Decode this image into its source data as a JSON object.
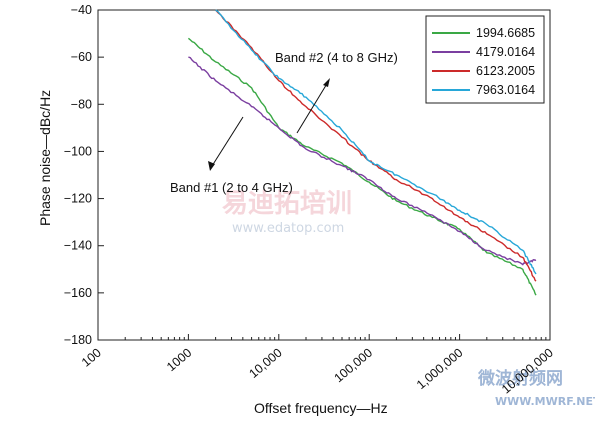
{
  "chart_data": {
    "type": "line",
    "xlabel": "Offset frequency—Hz",
    "ylabel": "Phase noise—dBc/Hz",
    "x_scale": "log",
    "xlim": [
      100,
      10000000
    ],
    "ylim": [
      -180,
      -40
    ],
    "x_ticks": [
      100,
      1000,
      10000,
      100000,
      1000000,
      10000000
    ],
    "x_tick_labels": [
      "100",
      "1000",
      "10,000",
      "100,000",
      "1,000,000",
      "10,000,000"
    ],
    "y_ticks": [
      -40,
      -60,
      -80,
      -100,
      -120,
      -140,
      -160,
      -180
    ],
    "y_tick_labels": [
      "−40",
      "−60",
      "−80",
      "−100",
      "−120",
      "−140",
      "−160",
      "−180"
    ],
    "grid": false,
    "legend_position": "top-right",
    "series": [
      {
        "name": "1994.6685",
        "color": "#3aa845",
        "x": [
          1000,
          2000,
          5000,
          10000,
          20000,
          50000,
          100000,
          200000,
          500000,
          1000000,
          2000000,
          5000000,
          7000000
        ],
        "y": [
          -52,
          -62,
          -73,
          -90,
          -98,
          -105,
          -113,
          -121,
          -128,
          -133,
          -143,
          -150,
          -161
        ]
      },
      {
        "name": "4179.0164",
        "color": "#7b3fa0",
        "x": [
          1000,
          2000,
          5000,
          10000,
          20000,
          50000,
          100000,
          200000,
          500000,
          1000000,
          2000000,
          5000000,
          7000000
        ],
        "y": [
          -60,
          -70,
          -81,
          -90,
          -99,
          -106,
          -112,
          -120,
          -127,
          -134,
          -142,
          -148,
          -146
        ]
      },
      {
        "name": "6123.2005",
        "color": "#cc2a2a",
        "x": [
          2000,
          5000,
          10000,
          20000,
          50000,
          100000,
          200000,
          500000,
          1000000,
          2000000,
          5000000,
          7000000
        ],
        "y": [
          -40,
          -56,
          -70,
          -81,
          -94,
          -104,
          -112,
          -120,
          -128,
          -135,
          -145,
          -155
        ]
      },
      {
        "name": "7963.0164",
        "color": "#27a7d8",
        "x": [
          2000,
          5000,
          10000,
          20000,
          50000,
          100000,
          200000,
          500000,
          1000000,
          2000000,
          5000000,
          7000000
        ],
        "y": [
          -40,
          -57,
          -69,
          -77,
          -91,
          -104,
          -110,
          -118,
          -125,
          -131,
          -142,
          -152
        ]
      }
    ],
    "annotations": [
      {
        "text": "Band #2 (4 to 8 GHz)"
      },
      {
        "text": "Band #1 (2 to 4 GHz)"
      }
    ]
  },
  "watermarks": {
    "center_cn": "易迪拓培训",
    "center_url": "www.edatop.com",
    "corner_cn": "微波射频网",
    "corner_url": "WWW.MWRF.NET"
  }
}
